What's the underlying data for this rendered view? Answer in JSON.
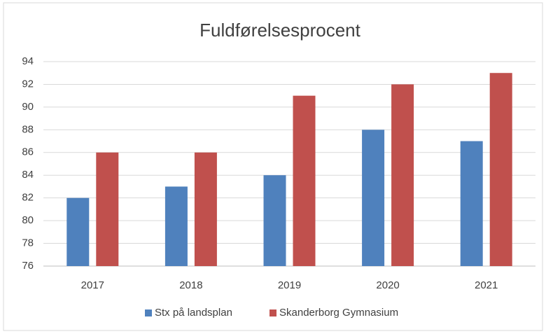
{
  "chart_data": {
    "type": "bar",
    "title": "Fuldførelsesprocent",
    "categories": [
      "2017",
      "2018",
      "2019",
      "2020",
      "2021"
    ],
    "series": [
      {
        "name": "Stx på landsplan",
        "color": "#4f81bd",
        "values": [
          82,
          83,
          84,
          88,
          87
        ]
      },
      {
        "name": "Skanderborg Gymnasium",
        "color": "#c0504d",
        "values": [
          86,
          86,
          91,
          92,
          93
        ]
      }
    ],
    "ylim": [
      76,
      94
    ],
    "yticks": [
      76,
      78,
      80,
      82,
      84,
      86,
      88,
      90,
      92,
      94
    ],
    "grid": true,
    "legend": "bottom"
  }
}
